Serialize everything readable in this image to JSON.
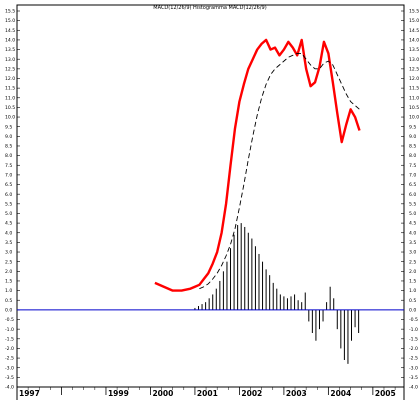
{
  "chart_data": {
    "type": "line",
    "title": "MACD(12/26/9) Histogramma MACD(12/26/9)",
    "xlabel": "",
    "ylabel": "",
    "xlim": [
      1997.0,
      2005.7
    ],
    "ylim": [
      -4.0,
      15.5
    ],
    "y_ticks": [
      15.5,
      15.0,
      14.5,
      14.0,
      13.5,
      13.0,
      12.5,
      12.0,
      11.5,
      11.0,
      10.5,
      10.0,
      9.5,
      9.0,
      8.5,
      8.0,
      7.5,
      7.0,
      6.5,
      6.0,
      5.5,
      5.0,
      4.5,
      4.0,
      3.5,
      3.0,
      2.5,
      2.0,
      1.5,
      1.0,
      0.5,
      0.0,
      -0.5,
      -1.0,
      -1.5,
      -2.0,
      -2.5,
      -3.0,
      -3.5,
      -4.0
    ],
    "y_tick_labels": [
      "15.5",
      "15.0",
      "14.5",
      "14.0",
      "13.5",
      "13.0",
      "12.5",
      "12.0",
      "11.5",
      "11.0",
      "10.5",
      "10.0",
      "9.5",
      "9.0",
      "8.5",
      "8.0",
      "7.5",
      "7.0",
      "6.5",
      "6.0",
      "5.5",
      "5.0",
      "4.5",
      "4.0",
      "3.5",
      "3.0",
      "2.5",
      "2.0",
      "1.5",
      "1.0",
      "0.5",
      "0.0",
      "-0.5",
      "-1.0",
      "-1.5",
      "-2.0",
      "-2.5",
      "-3.0",
      "-3.5",
      "-4.0"
    ],
    "x_ticks": [
      1997,
      1999,
      2000,
      2001,
      2002,
      2003,
      2004,
      2005
    ],
    "x_tick_labels": [
      "1997",
      "1999",
      "2000",
      "2001",
      "2002",
      "2003",
      "2004",
      "2005"
    ],
    "zero_line": 0.0,
    "grid": false,
    "colors": {
      "macd": "#ff0000",
      "signal": "#000000",
      "histogram": "#000000",
      "zero": "#0000cc"
    },
    "series": [
      {
        "style": "solid",
        "x": [
          2000.1,
          2000.3,
          2000.5,
          2000.7,
          2000.9,
          2001.0,
          2001.1,
          2001.2,
          2001.3,
          2001.4,
          2001.5,
          2001.6,
          2001.7,
          2001.8,
          2001.9,
          2002.0,
          2002.1,
          2002.2,
          2002.3,
          2002.4,
          2002.5,
          2002.6,
          2002.7,
          2002.8,
          2002.9,
          2003.0,
          2003.1,
          2003.2,
          2003.3,
          2003.4,
          2003.5,
          2003.6,
          2003.7,
          2003.8,
          2003.9,
          2004.0,
          2004.1,
          2004.2,
          2004.3,
          2004.4,
          2004.5,
          2004.6,
          2004.7
        ],
        "y": [
          1.4,
          1.2,
          1.0,
          1.0,
          1.1,
          1.2,
          1.3,
          1.6,
          1.9,
          2.4,
          3.0,
          4.0,
          5.5,
          7.5,
          9.4,
          10.8,
          11.7,
          12.5,
          13.0,
          13.5,
          13.8,
          14.0,
          13.5,
          13.6,
          13.2,
          13.5,
          13.9,
          13.6,
          13.2,
          14.0,
          12.5,
          11.6,
          11.8,
          12.6,
          13.9,
          13.3,
          11.8,
          10.2,
          8.7,
          9.6,
          10.4,
          10.0,
          9.3
        ]
      },
      {
        "style": "dashed",
        "x": [
          2001.1,
          2001.2,
          2001.3,
          2001.4,
          2001.5,
          2001.6,
          2001.7,
          2001.8,
          2001.9,
          2002.0,
          2002.1,
          2002.2,
          2002.3,
          2002.4,
          2002.5,
          2002.6,
          2002.7,
          2002.8,
          2002.9,
          2003.0,
          2003.1,
          2003.2,
          2003.3,
          2003.4,
          2003.5,
          2003.6,
          2003.7,
          2003.8,
          2003.9,
          2004.0,
          2004.1,
          2004.2,
          2004.3,
          2004.4,
          2004.5,
          2004.6,
          2004.7
        ],
        "y": [
          1.1,
          1.2,
          1.35,
          1.6,
          1.9,
          2.3,
          2.8,
          3.4,
          4.2,
          5.3,
          6.5,
          7.8,
          9.0,
          10.1,
          11.0,
          11.7,
          12.2,
          12.5,
          12.7,
          12.9,
          13.1,
          13.2,
          13.3,
          13.3,
          13.0,
          12.7,
          12.5,
          12.5,
          12.8,
          12.9,
          12.7,
          12.2,
          11.7,
          11.2,
          10.8,
          10.6,
          10.4
        ]
      }
    ],
    "histogram": {
      "x": [
        2001.0,
        2001.08,
        2001.16,
        2001.24,
        2001.32,
        2001.4,
        2001.48,
        2001.56,
        2001.64,
        2001.72,
        2001.8,
        2001.88,
        2001.96,
        2002.04,
        2002.12,
        2002.2,
        2002.28,
        2002.36,
        2002.44,
        2002.52,
        2002.6,
        2002.68,
        2002.76,
        2002.84,
        2002.92,
        2003.0,
        2003.08,
        2003.16,
        2003.24,
        2003.32,
        2003.4,
        2003.48,
        2003.56,
        2003.64,
        2003.72,
        2003.8,
        2003.88,
        2003.96,
        2004.04,
        2004.12,
        2004.2,
        2004.28,
        2004.36,
        2004.44,
        2004.52,
        2004.6,
        2004.68
      ],
      "y": [
        0.1,
        0.2,
        0.3,
        0.4,
        0.6,
        0.8,
        1.1,
        1.5,
        2.0,
        2.5,
        3.2,
        3.9,
        4.4,
        4.5,
        4.3,
        4.0,
        3.7,
        3.3,
        2.9,
        2.5,
        2.1,
        1.8,
        1.4,
        1.1,
        0.8,
        0.7,
        0.6,
        0.7,
        0.8,
        0.5,
        0.4,
        0.9,
        -0.6,
        -1.2,
        -1.6,
        -1.0,
        -0.6,
        0.4,
        1.2,
        0.6,
        -1.0,
        -2.0,
        -2.6,
        -2.8,
        -1.6,
        -0.9,
        -1.2
      ]
    }
  }
}
